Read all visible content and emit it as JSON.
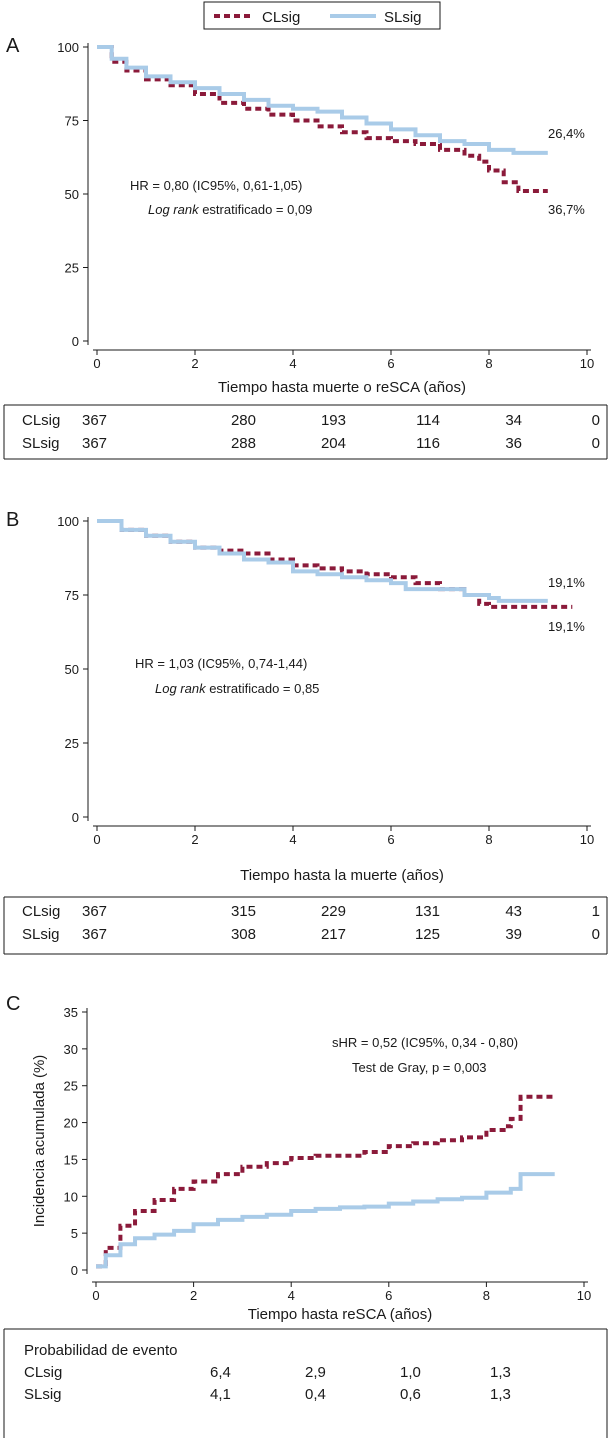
{
  "legend": {
    "items": [
      {
        "label": "CLsig",
        "color": "#8b1a3a",
        "style": "dashed"
      },
      {
        "label": "SLsig",
        "color": "#a9cbe8",
        "style": "solid"
      }
    ]
  },
  "colors": {
    "cl": "#8b1a3a",
    "sl": "#a9cbe8",
    "axis": "#1a1a1a"
  },
  "chart_data": [
    {
      "panel": "A",
      "type": "line",
      "xlabel": "Tiempo hasta muerte o reSCA (años)",
      "ylabel": "",
      "xlim": [
        0,
        10
      ],
      "ylim": [
        0,
        100
      ],
      "xticks": [
        0,
        2,
        4,
        6,
        8,
        10
      ],
      "yticks": [
        0,
        25,
        50,
        75,
        100
      ],
      "series": [
        {
          "name": "CLsig",
          "style": "dashed",
          "color": "#8b1a3a",
          "points": [
            [
              0,
              100
            ],
            [
              0.3,
              95
            ],
            [
              0.6,
              92
            ],
            [
              1,
              89
            ],
            [
              1.5,
              87
            ],
            [
              2,
              84
            ],
            [
              2.5,
              81
            ],
            [
              3,
              79
            ],
            [
              3.5,
              77
            ],
            [
              4,
              75
            ],
            [
              4.5,
              73
            ],
            [
              5,
              71
            ],
            [
              5.5,
              69
            ],
            [
              6,
              68
            ],
            [
              6.5,
              67
            ],
            [
              7,
              65
            ],
            [
              7.5,
              63
            ],
            [
              7.8,
              61
            ],
            [
              8,
              58
            ],
            [
              8.3,
              54
            ],
            [
              8.6,
              51
            ],
            [
              9.2,
              51
            ]
          ],
          "end_label": "36,7%"
        },
        {
          "name": "SLsig",
          "style": "solid",
          "color": "#a9cbe8",
          "points": [
            [
              0,
              100
            ],
            [
              0.3,
              96
            ],
            [
              0.6,
              93
            ],
            [
              1,
              90
            ],
            [
              1.5,
              88
            ],
            [
              2,
              86
            ],
            [
              2.5,
              84
            ],
            [
              3,
              82
            ],
            [
              3.5,
              80
            ],
            [
              4,
              79
            ],
            [
              4.5,
              78
            ],
            [
              5,
              76
            ],
            [
              5.5,
              74
            ],
            [
              6,
              72
            ],
            [
              6.5,
              70
            ],
            [
              7,
              68
            ],
            [
              7.5,
              67
            ],
            [
              8,
              65
            ],
            [
              8.5,
              64
            ],
            [
              9.2,
              64
            ]
          ],
          "end_label": "26,4%"
        }
      ],
      "annotations": [
        {
          "pre": "",
          "italic": "",
          "text": "HR = 0,80 (IC95%, 0,61-1,05)"
        },
        {
          "pre": "",
          "italic": "Log rank",
          "text": " estratificado = 0,09"
        }
      ],
      "risk_table": {
        "title": "",
        "rows": [
          {
            "label": "CLsig",
            "values": [
              "367",
              "280",
              "193",
              "114",
              "34",
              "0"
            ]
          },
          {
            "label": "SLsig",
            "values": [
              "367",
              "288",
              "204",
              "116",
              "36",
              "0"
            ]
          }
        ]
      }
    },
    {
      "panel": "B",
      "type": "line",
      "xlabel": "Tiempo hasta la muerte (años)",
      "ylabel": "",
      "xlim": [
        0,
        10
      ],
      "ylim": [
        0,
        100
      ],
      "xticks": [
        0,
        2,
        4,
        6,
        8,
        10
      ],
      "yticks": [
        0,
        25,
        50,
        75,
        100
      ],
      "series": [
        {
          "name": "CLsig",
          "style": "dashed",
          "color": "#8b1a3a",
          "points": [
            [
              0,
              100
            ],
            [
              0.5,
              97
            ],
            [
              1,
              95
            ],
            [
              1.5,
              93
            ],
            [
              2,
              91
            ],
            [
              2.5,
              90
            ],
            [
              3,
              89
            ],
            [
              3.5,
              87
            ],
            [
              4,
              85
            ],
            [
              4.5,
              84
            ],
            [
              5,
              83
            ],
            [
              5.5,
              82
            ],
            [
              6,
              81
            ],
            [
              6.5,
              79
            ],
            [
              7,
              77
            ],
            [
              7.5,
              75
            ],
            [
              7.8,
              72
            ],
            [
              8,
              71
            ],
            [
              9.7,
              71
            ]
          ],
          "end_label": "19,1%"
        },
        {
          "name": "SLsig",
          "style": "solid",
          "color": "#a9cbe8",
          "points": [
            [
              0,
              100
            ],
            [
              0.5,
              97
            ],
            [
              1,
              95
            ],
            [
              1.5,
              93
            ],
            [
              2,
              91
            ],
            [
              2.5,
              89
            ],
            [
              3,
              87
            ],
            [
              3.5,
              86
            ],
            [
              4,
              83
            ],
            [
              4.5,
              82
            ],
            [
              5,
              81
            ],
            [
              5.5,
              80
            ],
            [
              6,
              79
            ],
            [
              6.3,
              77
            ],
            [
              7,
              77
            ],
            [
              7.5,
              75
            ],
            [
              8,
              74
            ],
            [
              8.2,
              73
            ],
            [
              9.2,
              73
            ]
          ],
          "end_label": "19,1%"
        }
      ],
      "annotations": [
        {
          "pre": "",
          "italic": "",
          "text": "HR = 1,03 (IC95%, 0,74-1,44)"
        },
        {
          "pre": "",
          "italic": "Log rank",
          "text": " estratificado = 0,85"
        }
      ],
      "risk_table": {
        "title": "",
        "rows": [
          {
            "label": "CLsig",
            "values": [
              "367",
              "315",
              "229",
              "131",
              "43",
              "1"
            ]
          },
          {
            "label": "SLsig",
            "values": [
              "367",
              "308",
              "217",
              "125",
              "39",
              "0"
            ]
          }
        ]
      }
    },
    {
      "panel": "C",
      "type": "line",
      "xlabel": "Tiempo hasta reSCA (años)",
      "ylabel": "Incidencia acumulada (%)",
      "xlim": [
        0,
        10
      ],
      "ylim": [
        0,
        35
      ],
      "xticks": [
        0,
        2,
        4,
        6,
        8,
        10
      ],
      "yticks": [
        0,
        5,
        10,
        15,
        20,
        25,
        30,
        35
      ],
      "series": [
        {
          "name": "CLsig",
          "style": "dashed",
          "color": "#8b1a3a",
          "points": [
            [
              0,
              0.5
            ],
            [
              0.2,
              3
            ],
            [
              0.5,
              6
            ],
            [
              0.8,
              8
            ],
            [
              1.2,
              9.5
            ],
            [
              1.6,
              11
            ],
            [
              2,
              12
            ],
            [
              2.5,
              13
            ],
            [
              3,
              14
            ],
            [
              3.5,
              14.5
            ],
            [
              4,
              15.2
            ],
            [
              4.5,
              15.5
            ],
            [
              5,
              15.5
            ],
            [
              5.5,
              16
            ],
            [
              6,
              16.8
            ],
            [
              6.5,
              17.2
            ],
            [
              7,
              17.6
            ],
            [
              7.5,
              18
            ],
            [
              8,
              19
            ],
            [
              8.4,
              19.5
            ],
            [
              8.5,
              20.5
            ],
            [
              8.7,
              21
            ],
            [
              8.7,
              23.5
            ],
            [
              9.4,
              23.5
            ]
          ],
          "end_label": ""
        },
        {
          "name": "SLsig",
          "style": "solid",
          "color": "#a9cbe8",
          "points": [
            [
              0,
              0.5
            ],
            [
              0.2,
              2
            ],
            [
              0.5,
              3.5
            ],
            [
              0.8,
              4.3
            ],
            [
              1.2,
              4.8
            ],
            [
              1.6,
              5.3
            ],
            [
              2,
              6.2
            ],
            [
              2.5,
              6.8
            ],
            [
              3,
              7.2
            ],
            [
              3.5,
              7.5
            ],
            [
              4,
              8
            ],
            [
              4.5,
              8.3
            ],
            [
              5,
              8.5
            ],
            [
              5.5,
              8.6
            ],
            [
              6,
              9
            ],
            [
              6.5,
              9.3
            ],
            [
              7,
              9.6
            ],
            [
              7.5,
              9.8
            ],
            [
              8,
              10.5
            ],
            [
              8.5,
              11
            ],
            [
              8.7,
              11.5
            ],
            [
              8.7,
              13
            ],
            [
              9.4,
              13
            ]
          ],
          "end_label": ""
        }
      ],
      "annotations": [
        {
          "pre": "sHR = ",
          "italic": "",
          "text": "0,52 (IC95%, 0,34 - 0,80)"
        },
        {
          "pre": "",
          "italic": "",
          "text": "Test de Gray, p = 0,003"
        }
      ],
      "risk_table": {
        "title": "Probabilidad de evento",
        "rows": [
          {
            "label": "CLsig",
            "values": [
              "6,4",
              "2,9",
              "1,0",
              "1,3"
            ]
          },
          {
            "label": "SLsig",
            "values": [
              "4,1",
              "0,4",
              "0,6",
              "1,3"
            ]
          }
        ]
      }
    }
  ]
}
